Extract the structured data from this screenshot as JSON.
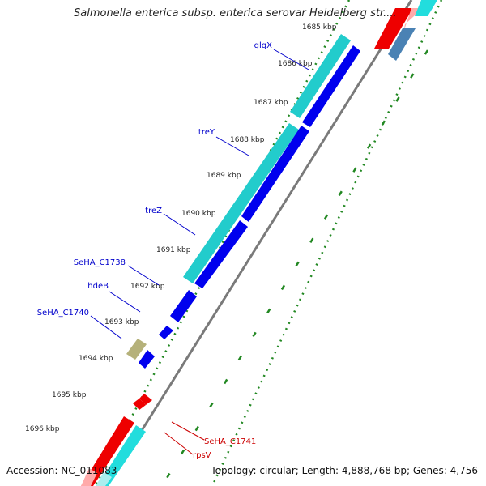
{
  "title": "Salmonella enterica subsp. enterica serovar Heidelberg str....",
  "footer": {
    "accession": "Accession: NC_011083",
    "summary": "Topology: circular; Length: 4,888,768 bp; Genes: 4,756"
  },
  "ticks": [
    "1685 kbp",
    "1686 kbp",
    "1687 kbp",
    "1688 kbp",
    "1689 kbp",
    "1690 kbp",
    "1691 kbp",
    "1692 kbp",
    "1693 kbp",
    "1694 kbp",
    "1695 kbp",
    "1696 kbp"
  ],
  "gene_labels": [
    "glgX",
    "treY",
    "treZ",
    "SeHA_C1738",
    "hdeB",
    "SeHA_C1740",
    "SeHA_C1741",
    "rpsV"
  ],
  "colors": {
    "forward_cds": "#0000ee",
    "reverse_cds": "#ee0000",
    "cyan_feature": "#22cccc",
    "olive_feature": "#b5b17a",
    "backbone": "#888888",
    "dotted_ring": "#228822",
    "label_blue": "#0000cc",
    "label_red": "#cc0000"
  }
}
